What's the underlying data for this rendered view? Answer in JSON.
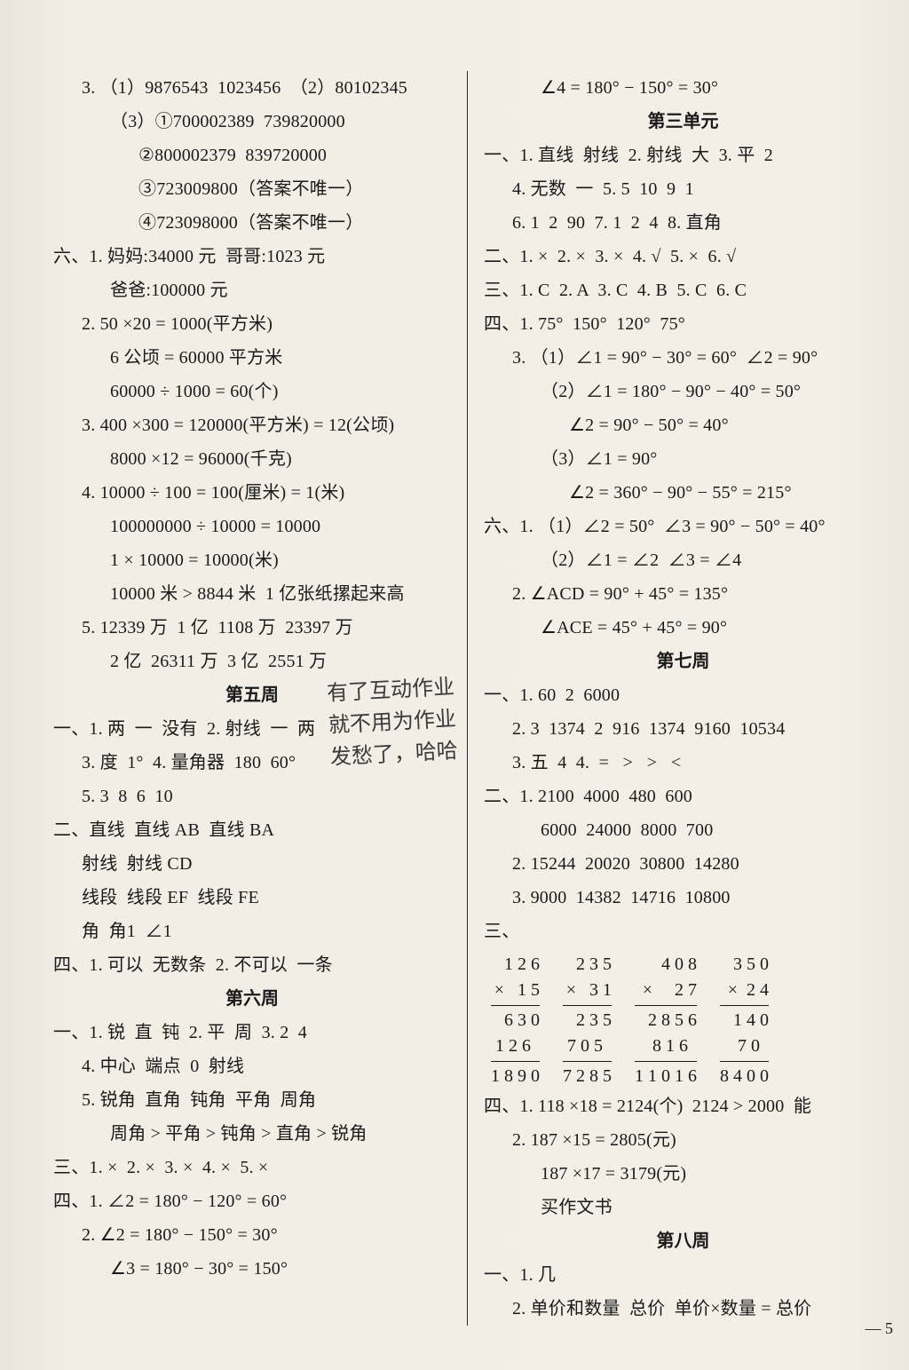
{
  "handwriting": {
    "l1": "有了互动作业",
    "l2": "就不用为作业",
    "l3": "发愁了，哈哈"
  },
  "page_number": "— 5",
  "left": [
    {
      "cls": "ln indent1",
      "t": "3. （1）9876543  1023456  （2）80102345"
    },
    {
      "cls": "ln indent2",
      "t": "（3）①700002389  739820000"
    },
    {
      "cls": "ln indent3",
      "t": "②800002379  839720000"
    },
    {
      "cls": "ln indent3",
      "t": "③723009800（答案不唯一）"
    },
    {
      "cls": "ln indent3",
      "t": "④723098000（答案不唯一）"
    },
    {
      "cls": "ln",
      "t": "六、1. 妈妈:34000 元  哥哥:1023 元"
    },
    {
      "cls": "ln indent2",
      "t": "爸爸:100000 元"
    },
    {
      "cls": "ln indent1",
      "t": "2. 50 ×20 = 1000(平方米)"
    },
    {
      "cls": "ln indent2",
      "t": "6 公顷 = 60000 平方米"
    },
    {
      "cls": "ln indent2",
      "t": "60000 ÷ 1000 = 60(个)"
    },
    {
      "cls": "ln indent1",
      "t": "3. 400 ×300 = 120000(平方米) = 12(公顷)"
    },
    {
      "cls": "ln indent2",
      "t": "8000 ×12 = 96000(千克)"
    },
    {
      "cls": "ln indent1",
      "t": "4. 10000 ÷ 100 = 100(厘米) = 1(米)"
    },
    {
      "cls": "ln indent2",
      "t": "100000000 ÷ 10000 = 10000"
    },
    {
      "cls": "ln indent2",
      "t": "1 × 10000 = 10000(米)"
    },
    {
      "cls": "ln indent2",
      "t": "10000 米 > 8844 米  1 亿张纸摞起来高"
    },
    {
      "cls": "ln indent1",
      "t": "5. 12339 万  1 亿  1108 万  23397 万"
    },
    {
      "cls": "ln indent2",
      "t": "2 亿  26311 万  3 亿  2551 万"
    },
    {
      "cls": "section-title",
      "t": "第五周"
    },
    {
      "cls": "ln",
      "t": "一、1. 两  一  没有  2. 射线  一  两"
    },
    {
      "cls": "ln indent1",
      "t": "3. 度  1°  4. 量角器  180  60°"
    },
    {
      "cls": "ln indent1",
      "t": "5. 3  8  6  10"
    },
    {
      "cls": "ln",
      "t": "二、直线  直线 AB  直线 BA"
    },
    {
      "cls": "ln indent1",
      "t": "射线  射线 CD"
    },
    {
      "cls": "ln indent1",
      "t": "线段  线段 EF  线段 FE"
    },
    {
      "cls": "ln indent1",
      "t": "角  角1  ∠1"
    },
    {
      "cls": "ln",
      "t": "四、1. 可以  无数条  2. 不可以  一条"
    },
    {
      "cls": "section-title",
      "t": "第六周"
    },
    {
      "cls": "ln",
      "t": "一、1. 锐  直  钝  2. 平  周  3. 2  4"
    },
    {
      "cls": "ln indent1",
      "t": "4. 中心  端点  0  射线"
    },
    {
      "cls": "ln indent1",
      "t": "5. 锐角  直角  钝角  平角  周角"
    },
    {
      "cls": "ln indent2",
      "t": "周角 > 平角 > 钝角 > 直角 > 锐角"
    },
    {
      "cls": "ln",
      "t": "三、1. ×  2. ×  3. ×  4. ×  5. ×"
    },
    {
      "cls": "ln",
      "t": "四、1. ∠2 = 180° − 120° = 60°"
    },
    {
      "cls": "ln indent1",
      "t": "2. ∠2 = 180° − 150° = 30°"
    },
    {
      "cls": "ln indent2",
      "t": "∠3 = 180° − 30° = 150°"
    }
  ],
  "right_top": [
    {
      "cls": "ln indent2",
      "t": "∠4 = 180° − 150° = 30°"
    },
    {
      "cls": "section-title",
      "t": "第三单元"
    },
    {
      "cls": "ln",
      "t": "一、1. 直线  射线  2. 射线  大  3. 平  2"
    },
    {
      "cls": "ln indent1",
      "t": "4. 无数  一  5. 5  10  9  1"
    },
    {
      "cls": "ln indent1",
      "t": "6. 1  2  90  7. 1  2  4  8. 直角"
    },
    {
      "cls": "ln",
      "t": "二、1. ×  2. ×  3. ×  4. √  5. ×  6. √"
    },
    {
      "cls": "ln",
      "t": "三、1. C  2. A  3. C  4. B  5. C  6. C"
    },
    {
      "cls": "ln",
      "t": "四、1. 75°  150°  120°  75°"
    },
    {
      "cls": "ln indent1",
      "t": "3. （1）∠1 = 90° − 30° = 60°  ∠2 = 90°"
    },
    {
      "cls": "ln indent2",
      "t": "（2）∠1 = 180° − 90° − 40° = 50°"
    },
    {
      "cls": "ln indent3",
      "t": "∠2 = 90° − 50° = 40°"
    },
    {
      "cls": "ln indent2",
      "t": "（3）∠1 = 90°"
    },
    {
      "cls": "ln indent3",
      "t": "∠2 = 360° − 90° − 55° = 215°"
    },
    {
      "cls": "ln",
      "t": "六、1. （1）∠2 = 50°  ∠3 = 90° − 50° = 40°"
    },
    {
      "cls": "ln indent2",
      "t": "（2）∠1 = ∠2  ∠3 = ∠4"
    },
    {
      "cls": "ln indent1",
      "t": "2. ∠ACD = 90° + 45° = 135°"
    },
    {
      "cls": "ln indent2",
      "t": "∠ACE = 45° + 45° = 90°"
    },
    {
      "cls": "section-title",
      "t": "第七周"
    },
    {
      "cls": "ln",
      "t": "一、1. 60  2  6000"
    },
    {
      "cls": "ln indent1",
      "t": "2. 3  1374  2  916  1374  9160  10534"
    },
    {
      "cls": "ln indent1",
      "t": "3. 五  4  4.  =   >   >   <"
    },
    {
      "cls": "ln",
      "t": "二、1. 2100  4000  480  600"
    },
    {
      "cls": "ln indent2",
      "t": "6000  24000  8000  700"
    },
    {
      "cls": "ln indent1",
      "t": "2. 15244  20020  30800  14280"
    },
    {
      "cls": "ln indent1",
      "t": "3. 9000  14382  14716  10800"
    },
    {
      "cls": "ln",
      "t": "三、"
    }
  ],
  "mults": [
    {
      "a": "  1 2 6",
      "b": "×   1 5",
      "p1": "  6 3 0",
      "p2": "1 2 6  ",
      "r": "1 8 9 0"
    },
    {
      "a": "  2 3 5",
      "b": "×   3 1",
      "p1": "  2 3 5",
      "p2": "7 0 5  ",
      "r": "7 2 8 5"
    },
    {
      "a": "    4 0 8",
      "b": "×     2 7",
      "p1": "  2 8 5 6",
      "p2": "  8 1 6  ",
      "r": "1 1 0 1 6"
    },
    {
      "a": "  3 5 0",
      "b": "×  2 4",
      "p1": " 1 4 0",
      "p2": " 7 0  ",
      "r": "8 4 0 0"
    }
  ],
  "right_bottom": [
    {
      "cls": "ln",
      "t": "四、1. 118 ×18 = 2124(个)  2124 > 2000  能"
    },
    {
      "cls": "ln indent1",
      "t": "2. 187 ×15 = 2805(元)"
    },
    {
      "cls": "ln indent2",
      "t": "187 ×17 = 3179(元)"
    },
    {
      "cls": "ln indent2",
      "t": "买作文书"
    },
    {
      "cls": "section-title",
      "t": "第八周"
    },
    {
      "cls": "ln",
      "t": "一、1. 几"
    },
    {
      "cls": "ln indent1",
      "t": "2. 单价和数量  总价  单价×数量 = 总价"
    }
  ]
}
